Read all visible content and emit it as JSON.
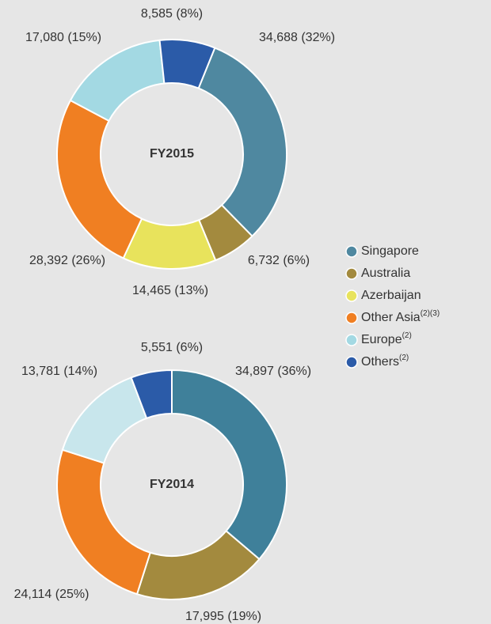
{
  "chart_data": [
    {
      "type": "pie",
      "title": "FY2015",
      "categories": [
        "Singapore",
        "Australia",
        "Azerbaijan",
        "Other Asia",
        "Europe",
        "Others"
      ],
      "notes": [
        null,
        null,
        null,
        "(2)(3)",
        "(2)",
        "(2)"
      ],
      "values": [
        34688,
        6732,
        14465,
        28392,
        17080,
        8585
      ],
      "value_labels": [
        "34,688 (32%)",
        "6,732 (6%)",
        "14,465 (13%)",
        "28,392 (26%)",
        "17,080 (15%)",
        "8,585 (8%)"
      ],
      "colors": [
        "#4f88a0",
        "#a38a3e",
        "#e8e35c",
        "#f07f22",
        "#a3d9e3",
        "#2b5ba8"
      ]
    },
    {
      "type": "pie",
      "title": "FY2014",
      "categories": [
        "Singapore",
        "Australia",
        "Other Asia",
        "Europe",
        "Others"
      ],
      "values": [
        34897,
        17995,
        24114,
        13781,
        5551
      ],
      "value_labels": [
        "34,897 (36%)",
        "17,995 (19%)",
        "24,114 (25%)",
        "13,781 (14%)",
        "5,551 (6%)"
      ],
      "colors": [
        "#3f809a",
        "#a38a3e",
        "#f07f22",
        "#c8e6ec",
        "#2b5ba8"
      ]
    }
  ]
}
